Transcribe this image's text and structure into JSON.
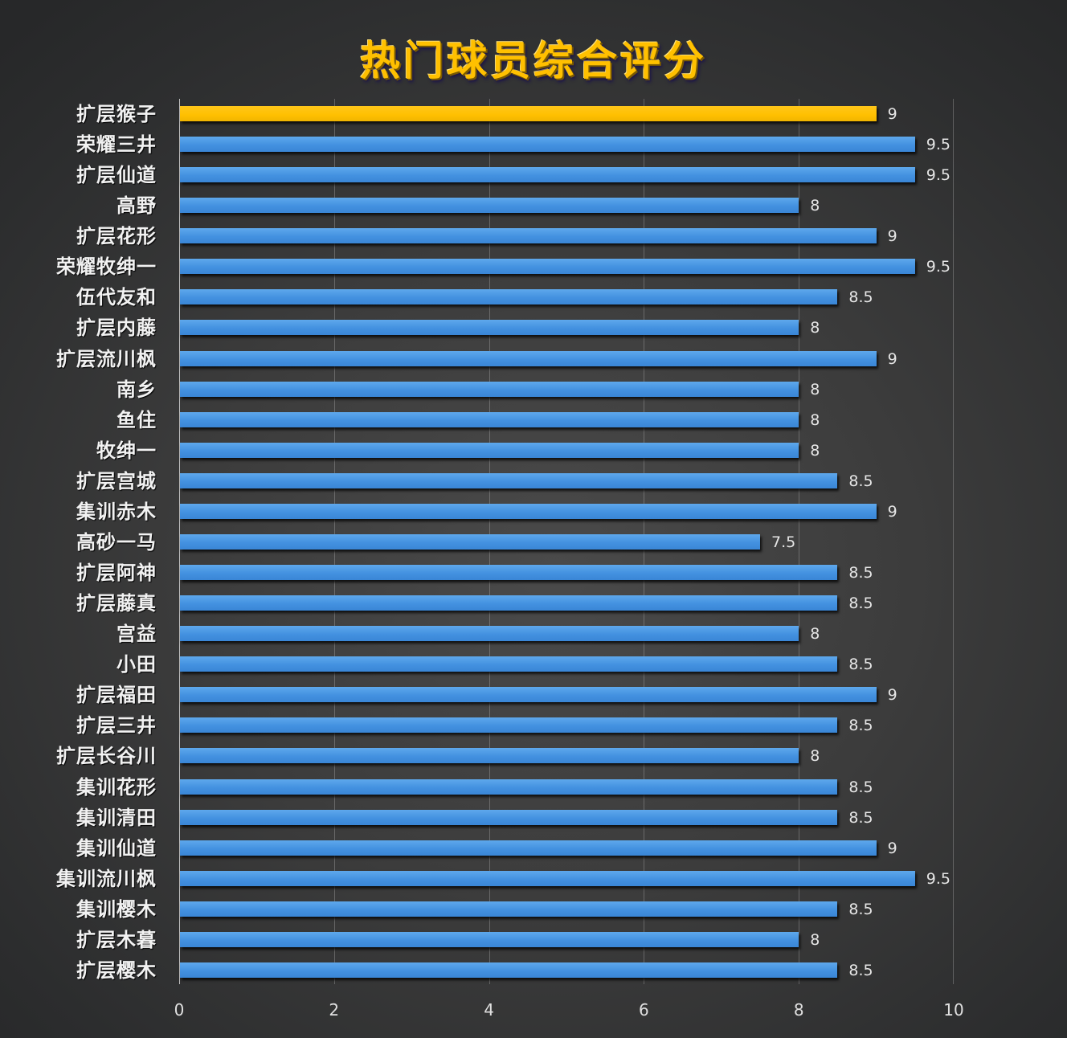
{
  "title": "热门球员综合评分",
  "colors": {
    "highlight": "#ffc000",
    "bar": "#4391e0",
    "title": "#ffc000"
  },
  "axis": {
    "ticks": [
      "0",
      "2",
      "4",
      "6",
      "8",
      "10"
    ]
  },
  "chart_data": {
    "type": "bar",
    "orientation": "horizontal",
    "title": "热门球员综合评分",
    "xlabel": "",
    "ylabel": "",
    "xlim": [
      0,
      10
    ],
    "xticks": [
      0,
      2,
      4,
      6,
      8,
      10
    ],
    "grid": "vertical",
    "legend": "none",
    "data_labels": true,
    "highlighted_category": "扩层猴子",
    "categories": [
      "扩层猴子",
      "荣耀三井",
      "扩层仙道",
      "高野",
      "扩层花形",
      "荣耀牧绅一",
      "伍代友和",
      "扩层内藤",
      "扩层流川枫",
      "南乡",
      "鱼住",
      "牧绅一",
      "扩层宫城",
      "集训赤木",
      "高砂一马",
      "扩层阿神",
      "扩层藤真",
      "宫益",
      "小田",
      "扩层福田",
      "扩层三井",
      "扩层长谷川",
      "集训花形",
      "集训清田",
      "集训仙道",
      "集训流川枫",
      "集训樱木",
      "扩层木暮",
      "扩层樱木"
    ],
    "values": [
      9,
      9.5,
      9.5,
      8,
      9,
      9.5,
      8.5,
      8,
      9,
      8,
      8,
      8,
      8.5,
      9,
      7.5,
      8.5,
      8.5,
      8,
      8.5,
      9,
      8.5,
      8,
      8.5,
      8.5,
      9,
      9.5,
      8.5,
      8,
      8.5
    ],
    "labels": [
      "9",
      "9.5",
      "9.5",
      "8",
      "9",
      "9.5",
      "8.5",
      "8",
      "9",
      "8",
      "8",
      "8",
      "8.5",
      "9",
      "7.5",
      "8.5",
      "8.5",
      "8",
      "8.5",
      "9",
      "8.5",
      "8",
      "8.5",
      "8.5",
      "9",
      "9.5",
      "8.5",
      "8",
      "8.5"
    ]
  }
}
